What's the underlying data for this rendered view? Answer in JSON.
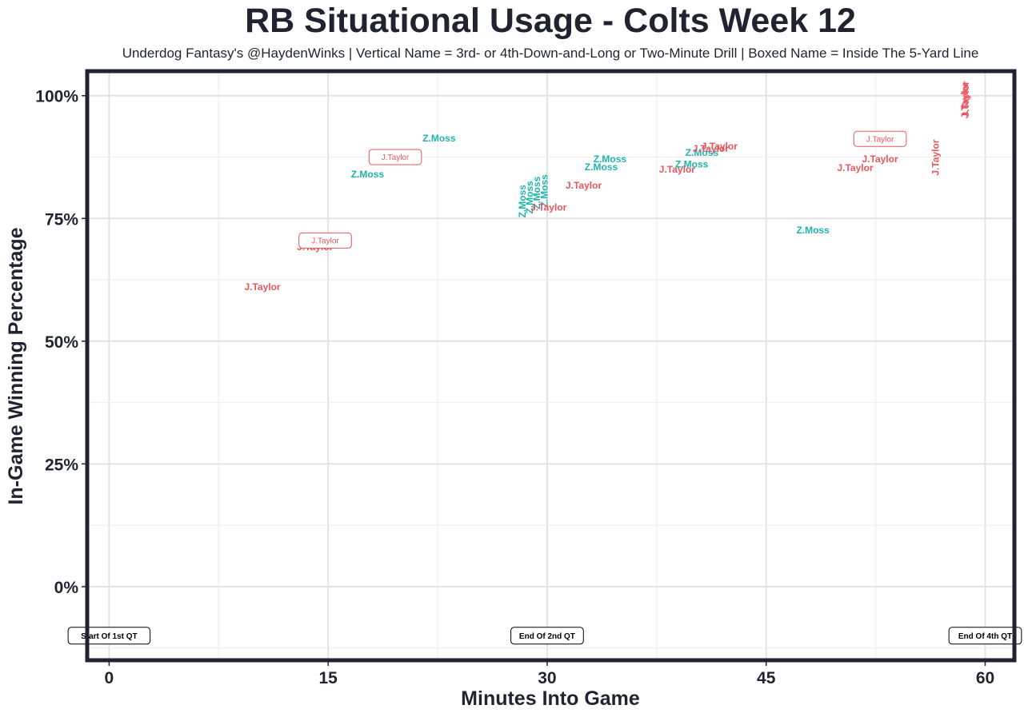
{
  "chart_data": {
    "type": "scatter",
    "title": "RB Situational Usage - Colts Week 12",
    "subtitle": "Underdog Fantasy's @HaydenWinks | Vertical Name = 3rd- or 4th-Down-and-Long or Two-Minute Drill | Boxed Name = Inside The 5-Yard Line",
    "xlabel": "Minutes Into Game",
    "ylabel": "In-Game Winning Percentage",
    "xlim": [
      -1.5,
      62
    ],
    "ylim": [
      -15,
      105
    ],
    "x_ticks": [
      0,
      15,
      30,
      45,
      60
    ],
    "x_tick_labels": [
      "0",
      "15",
      "30",
      "45",
      "60"
    ],
    "y_ticks": [
      0,
      25,
      50,
      75,
      100
    ],
    "y_tick_labels": [
      "0%",
      "25%",
      "50%",
      "75%",
      "100%"
    ],
    "grid": true,
    "colors": {
      "J.Taylor": "#e8565b",
      "Z.Moss": "#1fb3ad"
    },
    "annotations": [
      {
        "text": "Start Of 1st QT",
        "x": 0,
        "y": -10
      },
      {
        "text": "End Of 2nd QT",
        "x": 30,
        "y": -10
      },
      {
        "text": "End Of 4th QT",
        "x": 60,
        "y": -10
      }
    ],
    "points": [
      {
        "label": "J.Taylor",
        "x": 10.5,
        "y": 61,
        "style": "normal"
      },
      {
        "label": "J.Taylor",
        "x": 14.1,
        "y": 69.2,
        "style": "normal"
      },
      {
        "label": "J.Taylor",
        "x": 14.8,
        "y": 70.5,
        "style": "boxed"
      },
      {
        "label": "Z.Moss",
        "x": 17.7,
        "y": 84,
        "style": "normal"
      },
      {
        "label": "J.Taylor",
        "x": 19.6,
        "y": 87.5,
        "style": "boxed"
      },
      {
        "label": "Z.Moss",
        "x": 22.6,
        "y": 91.3,
        "style": "normal"
      },
      {
        "label": "Z.Moss",
        "x": 28.3,
        "y": 78.5,
        "style": "vertical"
      },
      {
        "label": "Z.Moss",
        "x": 28.8,
        "y": 79.3,
        "style": "vertical"
      },
      {
        "label": "Z.Moss",
        "x": 29.3,
        "y": 80.2,
        "style": "vertical"
      },
      {
        "label": "Z.Moss",
        "x": 29.8,
        "y": 80.6,
        "style": "vertical"
      },
      {
        "label": "J.Taylor",
        "x": 30.1,
        "y": 77.2,
        "style": "normal"
      },
      {
        "label": "J.Taylor",
        "x": 32.5,
        "y": 81.7,
        "style": "normal"
      },
      {
        "label": "Z.Moss",
        "x": 33.7,
        "y": 85.5,
        "style": "normal"
      },
      {
        "label": "Z.Moss",
        "x": 34.3,
        "y": 87.1,
        "style": "normal"
      },
      {
        "label": "J.Taylor",
        "x": 38.9,
        "y": 85,
        "style": "normal"
      },
      {
        "label": "Z.Moss",
        "x": 39.9,
        "y": 86,
        "style": "normal"
      },
      {
        "label": "Z.Moss",
        "x": 40.6,
        "y": 88.4,
        "style": "normal"
      },
      {
        "label": "J.Taylor",
        "x": 41.2,
        "y": 89.2,
        "style": "normal"
      },
      {
        "label": "J.Taylor",
        "x": 41.8,
        "y": 89.7,
        "style": "normal"
      },
      {
        "label": "Z.Moss",
        "x": 48.2,
        "y": 72.6,
        "style": "normal"
      },
      {
        "label": "J.Taylor",
        "x": 51.1,
        "y": 85.3,
        "style": "normal"
      },
      {
        "label": "J.Taylor",
        "x": 52.8,
        "y": 87.1,
        "style": "normal"
      },
      {
        "label": "J.Taylor",
        "x": 52.8,
        "y": 91.2,
        "style": "boxed"
      },
      {
        "label": "J.Taylor",
        "x": 56.6,
        "y": 87.4,
        "style": "vertical"
      },
      {
        "label": "J.Taylor",
        "x": 58.6,
        "y": 99,
        "style": "vertical"
      },
      {
        "label": "J.Taylor",
        "x": 58.65,
        "y": 99.3,
        "style": "vertical"
      }
    ]
  }
}
